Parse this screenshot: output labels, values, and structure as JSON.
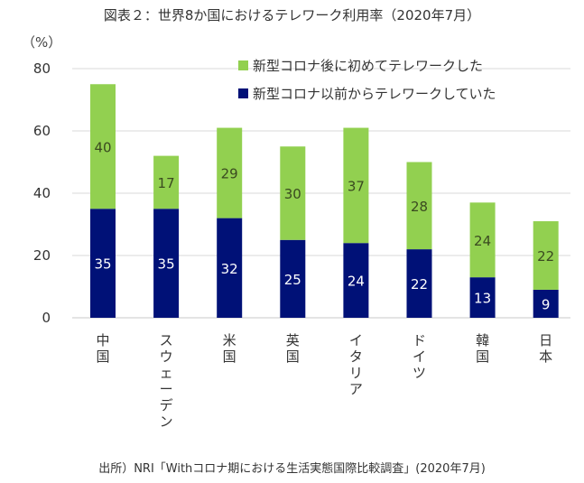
{
  "chart_data": {
    "type": "bar",
    "stacked": true,
    "title": "図表２：世界8か国におけるテレワーク利用率（2020年7月）",
    "ylabel": "（%）",
    "xlabel": "",
    "ylim": [
      0,
      80
    ],
    "yticks": [
      0,
      20,
      40,
      60,
      80
    ],
    "grid": true,
    "legend_position": "top-right",
    "categories": [
      "中国",
      "スウェーデン",
      "米国",
      "英国",
      "イタリア",
      "ドイツ",
      "韓国",
      "日本"
    ],
    "series": [
      {
        "name": "新型コロナ以前からテレワークしていた",
        "color": "#001177",
        "label_color": "#ffffff",
        "values": [
          35,
          35,
          32,
          25,
          24,
          22,
          13,
          9
        ]
      },
      {
        "name": "新型コロナ後に初めてテレワークした",
        "color": "#92d050",
        "label_color": "#3a4a20",
        "values": [
          40,
          17,
          29,
          30,
          37,
          28,
          24,
          22
        ]
      }
    ],
    "source": "出所）NRI「Withコロナ期における生活実態国際比較調査」(2020年7月)"
  }
}
